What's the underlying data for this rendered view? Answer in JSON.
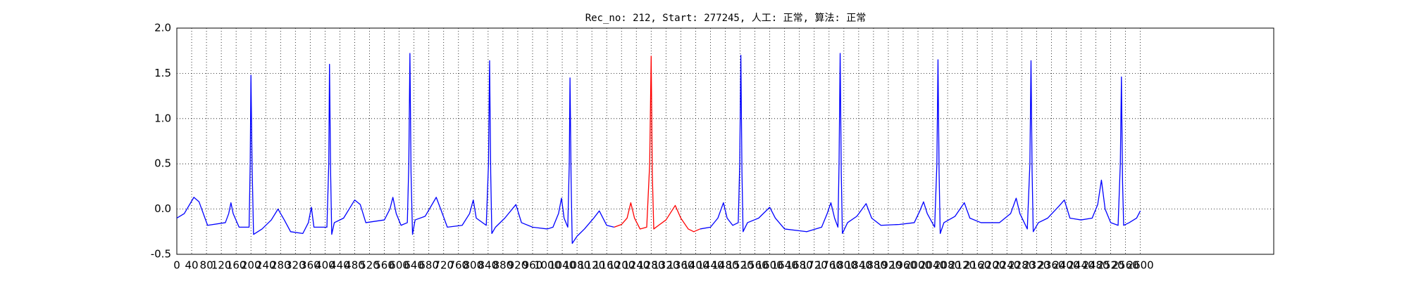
{
  "chart_data": {
    "type": "line",
    "title": "Rec_no: 212, Start: 277245, 人工: 正常, 算法: 正常",
    "xlim": [
      0,
      2960
    ],
    "ylim": [
      -0.5,
      2.0
    ],
    "xticks": [
      0,
      40,
      80,
      120,
      160,
      200,
      240,
      280,
      320,
      360,
      400,
      440,
      480,
      520,
      560,
      600,
      640,
      680,
      720,
      760,
      800,
      840,
      880,
      920,
      960,
      1000,
      1040,
      1080,
      1120,
      1160,
      1200,
      1240,
      1280,
      1320,
      1360,
      1400,
      1440,
      1480,
      1520,
      1560,
      1600,
      1640,
      1680,
      1720,
      1760,
      1800,
      1840,
      1880,
      1920,
      1960,
      2000,
      2040,
      2080,
      2120,
      2160,
      2200,
      2240,
      2280,
      2320,
      2360,
      2400,
      2440,
      2480,
      2520,
      2560,
      2600
    ],
    "yticks": [
      -0.5,
      0.0,
      0.5,
      1.0,
      1.5,
      2.0
    ],
    "grid": true,
    "series": [
      {
        "color": "#0000ff",
        "x": [
          0,
          20,
          46,
          60,
          83,
          131,
          140,
          146,
          152,
          168,
          195,
          198,
          200,
          203,
          207,
          230,
          255,
          273,
          290,
          307,
          340,
          355,
          363,
          370,
          405,
          410,
          412,
          415,
          418,
          425,
          450,
          480,
          495,
          510,
          560,
          575,
          583,
          592,
          605,
          622,
          626,
          629,
          632,
          636,
          643,
          670,
          700,
          712,
          730,
          770,
          790,
          800,
          808,
          835,
          841,
          844,
          847,
          850,
          860,
          885,
          915,
          930,
          960,
          1000,
          1015,
          1030,
          1038,
          1045,
          1055,
          1059,
          1061,
          1064,
          1067,
          1080,
          1100,
          1125,
          1140,
          1160,
          1180,
          1300,
          1412,
          1440,
          1460,
          1475,
          1485,
          1500,
          1515,
          1519,
          1522,
          1525,
          1528,
          1540,
          1570,
          1600,
          1615,
          1640,
          1700,
          1740,
          1755,
          1765,
          1775,
          1784,
          1787,
          1790,
          1793,
          1796,
          1810,
          1835,
          1860,
          1875,
          1900,
          1950,
          1990,
          2005,
          2015,
          2025,
          2045,
          2051,
          2054,
          2057,
          2060,
          2070,
          2100,
          2125,
          2140,
          2170,
          2220,
          2250,
          2265,
          2275,
          2295,
          2302,
          2305,
          2308,
          2311,
          2325,
          2350,
          2380,
          2395,
          2410,
          2440,
          2470,
          2485,
          2495,
          2505,
          2520,
          2540,
          2546,
          2549,
          2552,
          2555,
          2570,
          2590,
          2600
        ],
        "values": [
          -0.1,
          -0.05,
          0.13,
          0.08,
          -0.18,
          -0.15,
          -0.05,
          0.07,
          -0.05,
          -0.2,
          -0.2,
          0.5,
          1.48,
          0.5,
          -0.28,
          -0.22,
          -0.12,
          0.0,
          -0.12,
          -0.25,
          -0.27,
          -0.15,
          0.02,
          -0.2,
          -0.2,
          0.5,
          1.6,
          0.4,
          -0.28,
          -0.15,
          -0.1,
          0.1,
          0.05,
          -0.15,
          -0.12,
          0.0,
          0.13,
          -0.05,
          -0.18,
          -0.15,
          0.5,
          1.72,
          0.4,
          -0.28,
          -0.12,
          -0.08,
          0.13,
          0.0,
          -0.2,
          -0.18,
          -0.05,
          0.1,
          -0.1,
          -0.18,
          0.5,
          1.64,
          0.4,
          -0.27,
          -0.2,
          -0.1,
          0.05,
          -0.15,
          -0.2,
          -0.22,
          -0.2,
          -0.05,
          0.12,
          -0.1,
          -0.2,
          0.5,
          1.45,
          0.3,
          -0.38,
          -0.3,
          -0.22,
          -0.1,
          -0.02,
          -0.18,
          -0.2,
          null,
          -0.22,
          -0.2,
          -0.1,
          0.07,
          -0.1,
          -0.18,
          -0.15,
          0.5,
          1.7,
          0.4,
          -0.25,
          -0.15,
          -0.1,
          0.02,
          -0.1,
          -0.22,
          -0.25,
          -0.2,
          -0.05,
          0.07,
          -0.1,
          -0.2,
          0.5,
          1.72,
          0.4,
          -0.27,
          -0.15,
          -0.08,
          0.06,
          -0.1,
          -0.18,
          -0.17,
          -0.15,
          -0.02,
          0.08,
          -0.05,
          -0.2,
          0.5,
          1.65,
          0.4,
          -0.27,
          -0.15,
          -0.08,
          0.07,
          -0.1,
          -0.15,
          -0.15,
          -0.05,
          0.12,
          -0.05,
          -0.22,
          0.5,
          1.64,
          0.4,
          -0.25,
          -0.15,
          -0.1,
          0.03,
          0.1,
          -0.1,
          -0.12,
          -0.1,
          0.05,
          0.32,
          0.0,
          -0.15,
          -0.18,
          0.5,
          1.46,
          0.3,
          -0.18,
          -0.15,
          -0.1,
          -0.02
        ]
      },
      {
        "color": "#ff0000",
        "x": [
          1180,
          1200,
          1215,
          1225,
          1235,
          1250,
          1268,
          1276,
          1280,
          1283,
          1287,
          1300,
          1320,
          1345,
          1360,
          1380,
          1395,
          1412
        ],
        "values": [
          -0.2,
          -0.17,
          -0.1,
          0.07,
          -0.1,
          -0.22,
          -0.2,
          0.5,
          1.69,
          0.4,
          -0.22,
          -0.18,
          -0.12,
          0.04,
          -0.1,
          -0.22,
          -0.25,
          -0.22
        ]
      }
    ]
  }
}
